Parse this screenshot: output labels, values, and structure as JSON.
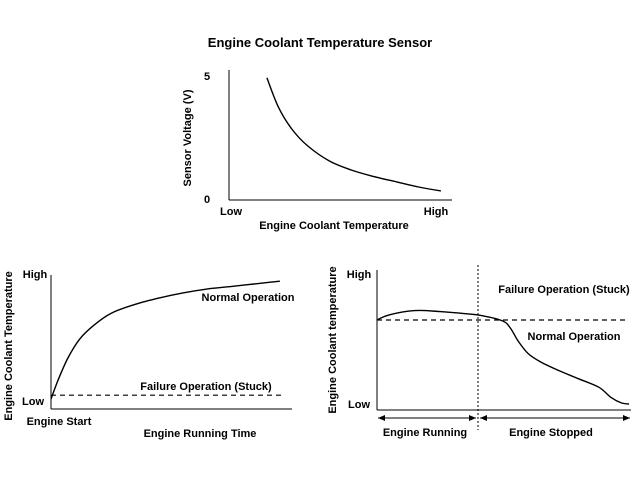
{
  "title": "Engine Coolant Temperature Sensor",
  "chart_data": [
    {
      "type": "line",
      "xlabel": "Engine Coolant Temperature",
      "ylabel": "Sensor Voltage (V)",
      "x_tick_labels": [
        "Low",
        "High"
      ],
      "y_tick_labels": [
        "5",
        "0"
      ],
      "xlim": [
        0,
        1
      ],
      "ylim": [
        0,
        5
      ],
      "grid": false,
      "series": [
        {
          "x": [
            0.17,
            0.22,
            0.28,
            0.35,
            0.45,
            0.55,
            0.65,
            0.75,
            0.85,
            0.95
          ],
          "y": [
            4.7,
            3.6,
            2.75,
            2.1,
            1.5,
            1.15,
            0.9,
            0.7,
            0.5,
            0.35
          ]
        }
      ]
    },
    {
      "type": "line",
      "xlabel": "Engine Running Time",
      "ylabel": "Engine Coolant Temperature",
      "x_tick_labels": [
        "Engine Start"
      ],
      "y_tick_labels": [
        "High",
        "Low"
      ],
      "xlim": [
        0,
        1
      ],
      "ylim": [
        0,
        1
      ],
      "grid": false,
      "series": [
        {
          "name": "Normal Operation",
          "style": "solid",
          "x": [
            0.0,
            0.03,
            0.07,
            0.12,
            0.18,
            0.25,
            0.35,
            0.45,
            0.55,
            0.65,
            0.75,
            0.85,
            0.95
          ],
          "y": [
            0.0,
            0.15,
            0.32,
            0.47,
            0.58,
            0.67,
            0.74,
            0.79,
            0.83,
            0.86,
            0.88,
            0.9,
            0.92
          ]
        },
        {
          "name": "Failure Operation (Stuck)",
          "style": "dashed",
          "x": [
            0.0,
            0.97
          ],
          "y": [
            0.03,
            0.03
          ]
        }
      ]
    },
    {
      "type": "line",
      "xlabel": "",
      "ylabel": "Engine Coolant temperature",
      "x_tick_labels": [],
      "y_tick_labels": [
        "High",
        "Low"
      ],
      "x_annotations": [
        "Engine Running",
        "Engine Stopped"
      ],
      "xlim": [
        0,
        1
      ],
      "ylim": [
        0,
        1
      ],
      "grid": false,
      "series": [
        {
          "name": "Normal Operation",
          "style": "solid",
          "x": [
            0.0,
            0.05,
            0.15,
            0.25,
            0.35,
            0.42,
            0.5,
            0.53,
            0.56,
            0.6,
            0.65,
            0.72,
            0.8,
            0.88,
            0.93,
            0.97,
            1.0
          ],
          "y": [
            0.8,
            0.85,
            0.89,
            0.88,
            0.86,
            0.84,
            0.79,
            0.72,
            0.6,
            0.48,
            0.4,
            0.32,
            0.24,
            0.16,
            0.06,
            0.01,
            0.0
          ]
        },
        {
          "name": "Failure Operation (Stuck)",
          "style": "dashed",
          "x": [
            0.0,
            1.0
          ],
          "y": [
            0.8,
            0.8
          ]
        }
      ]
    }
  ]
}
